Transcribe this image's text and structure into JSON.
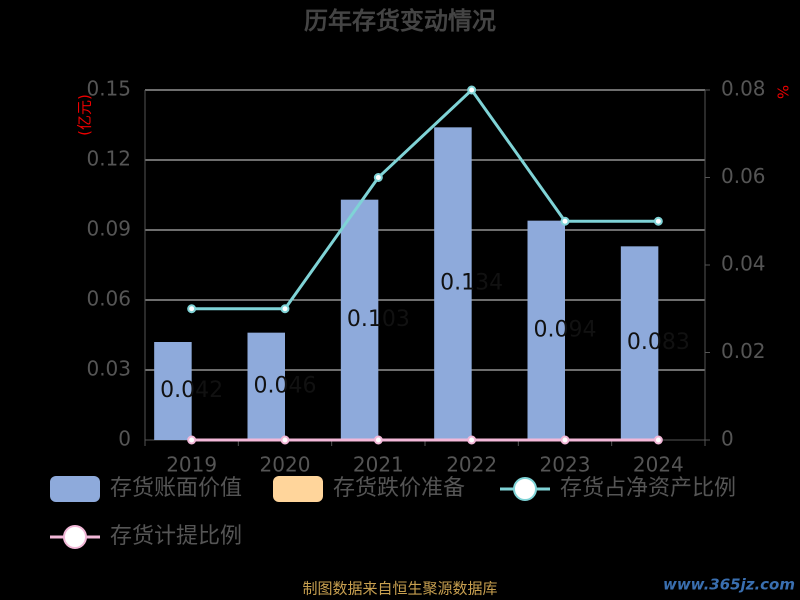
{
  "chart_data": {
    "type": "bar",
    "title": "历年存货变动情况",
    "y_label": "(亿元)",
    "y2_label": "%",
    "categories": [
      "2019",
      "2020",
      "2021",
      "2022",
      "2023",
      "2024"
    ],
    "series": [
      {
        "name": "存货账面价值",
        "type": "bar",
        "color": "#8eaadb",
        "values": [
          0.042,
          0.046,
          0.103,
          0.134,
          0.094,
          0.083
        ]
      },
      {
        "name": "存货跌价准备",
        "type": "bar",
        "color": "#ffd59b",
        "values": [
          0,
          0,
          0,
          0,
          0,
          0
        ]
      },
      {
        "name": "存货占净资产比例",
        "type": "line",
        "axis": "y2",
        "color": "#7fd3d6",
        "values": [
          0.03,
          0.03,
          0.06,
          0.08,
          0.05,
          0.05
        ]
      },
      {
        "name": "存货计提比例",
        "type": "line",
        "axis": "y2",
        "color": "#f2b8d8",
        "values": [
          0,
          0,
          0,
          0,
          0,
          0
        ]
      }
    ],
    "ylim": [
      0,
      0.15
    ],
    "yticks": [
      0,
      0.03,
      0.06,
      0.09,
      0.12,
      0.15
    ],
    "y2lim": [
      0,
      0.08
    ],
    "y2ticks": [
      0,
      0.02,
      0.04,
      0.06,
      0.08
    ],
    "grid": true,
    "source": "制图数据来自恒生聚源数据库",
    "watermark": "www.365jz.com"
  }
}
